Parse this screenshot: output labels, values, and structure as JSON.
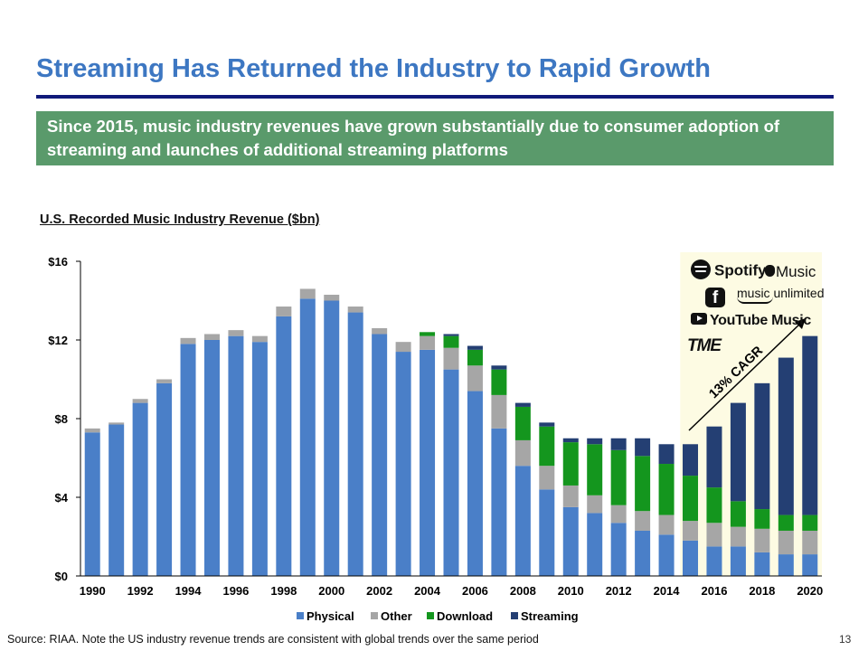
{
  "header": {
    "title": "Streaming Has Returned the Industry to Rapid Growth",
    "banner": "Since 2015, music industry revenues have grown substantially due to consumer adoption of streaming and launches of additional streaming platforms"
  },
  "footer": {
    "source": "Source: RIAA. Note the US industry revenue trends are consistent with global trends over the same period",
    "page_number": "13"
  },
  "logos": {
    "spotify": "Spotify",
    "apple_music": "Music",
    "facebook": "f",
    "amazon": "music unlimited",
    "youtube": "YouTube Music",
    "tme": "TME"
  },
  "colors": {
    "physical": "#4a7fc8",
    "other": "#a6a6a6",
    "download": "#14961e",
    "streaming": "#243f73",
    "highlight": "#fdfbe3",
    "title": "#3d77c2",
    "banner": "#5a9a6b"
  },
  "chart_data": {
    "type": "bar",
    "stacked": true,
    "title": "U.S. Recorded Music Industry Revenue ($bn)",
    "xlabel": "",
    "ylabel": "",
    "ylim": [
      0,
      16
    ],
    "yticks": [
      0,
      4,
      8,
      12,
      16
    ],
    "ytick_labels": [
      "$0",
      "$4",
      "$8",
      "$12",
      "$16"
    ],
    "categories": [
      "1990",
      "1991",
      "1992",
      "1993",
      "1994",
      "1995",
      "1996",
      "1997",
      "1998",
      "1999",
      "2000",
      "2001",
      "2002",
      "2003",
      "2004",
      "2005",
      "2006",
      "2007",
      "2008",
      "2009",
      "2010",
      "2011",
      "2012",
      "2013",
      "2014",
      "2015",
      "2016",
      "2017",
      "2018",
      "2019",
      "2020"
    ],
    "xtick_labels": [
      "1990",
      "1992",
      "1994",
      "1996",
      "1998",
      "2000",
      "2002",
      "2004",
      "2006",
      "2008",
      "2010",
      "2012",
      "2014",
      "2016",
      "2018",
      "2020"
    ],
    "series": [
      {
        "name": "Physical",
        "values": [
          7.3,
          7.7,
          8.8,
          9.8,
          11.8,
          12.0,
          12.2,
          11.9,
          13.2,
          14.1,
          14.0,
          13.4,
          12.3,
          11.4,
          11.5,
          10.5,
          9.4,
          7.5,
          5.6,
          4.4,
          3.5,
          3.2,
          2.7,
          2.3,
          2.1,
          1.8,
          1.5,
          1.5,
          1.2,
          1.1,
          1.1
        ]
      },
      {
        "name": "Other",
        "values": [
          0.2,
          0.1,
          0.2,
          0.2,
          0.3,
          0.3,
          0.3,
          0.3,
          0.5,
          0.5,
          0.3,
          0.3,
          0.3,
          0.5,
          0.7,
          1.1,
          1.3,
          1.7,
          1.3,
          1.2,
          1.1,
          0.9,
          0.9,
          1.0,
          1.0,
          1.0,
          1.2,
          1.0,
          1.2,
          1.2,
          1.2
        ]
      },
      {
        "name": "Download",
        "values": [
          0,
          0,
          0,
          0,
          0,
          0,
          0,
          0,
          0,
          0,
          0,
          0,
          0,
          0,
          0.2,
          0.6,
          0.8,
          1.3,
          1.7,
          2.0,
          2.2,
          2.6,
          2.8,
          2.8,
          2.6,
          2.3,
          1.8,
          1.3,
          1.0,
          0.8,
          0.8
        ]
      },
      {
        "name": "Streaming",
        "values": [
          0,
          0,
          0,
          0,
          0,
          0,
          0,
          0,
          0,
          0,
          0,
          0,
          0,
          0,
          0,
          0.1,
          0.2,
          0.2,
          0.2,
          0.2,
          0.2,
          0.3,
          0.6,
          0.9,
          1.0,
          1.6,
          3.1,
          5.0,
          6.4,
          8.0,
          9.1
        ]
      }
    ],
    "annotation": "13% CAGR",
    "highlight_range": [
      "2015",
      "2020"
    ],
    "legend": "bottom-center"
  }
}
